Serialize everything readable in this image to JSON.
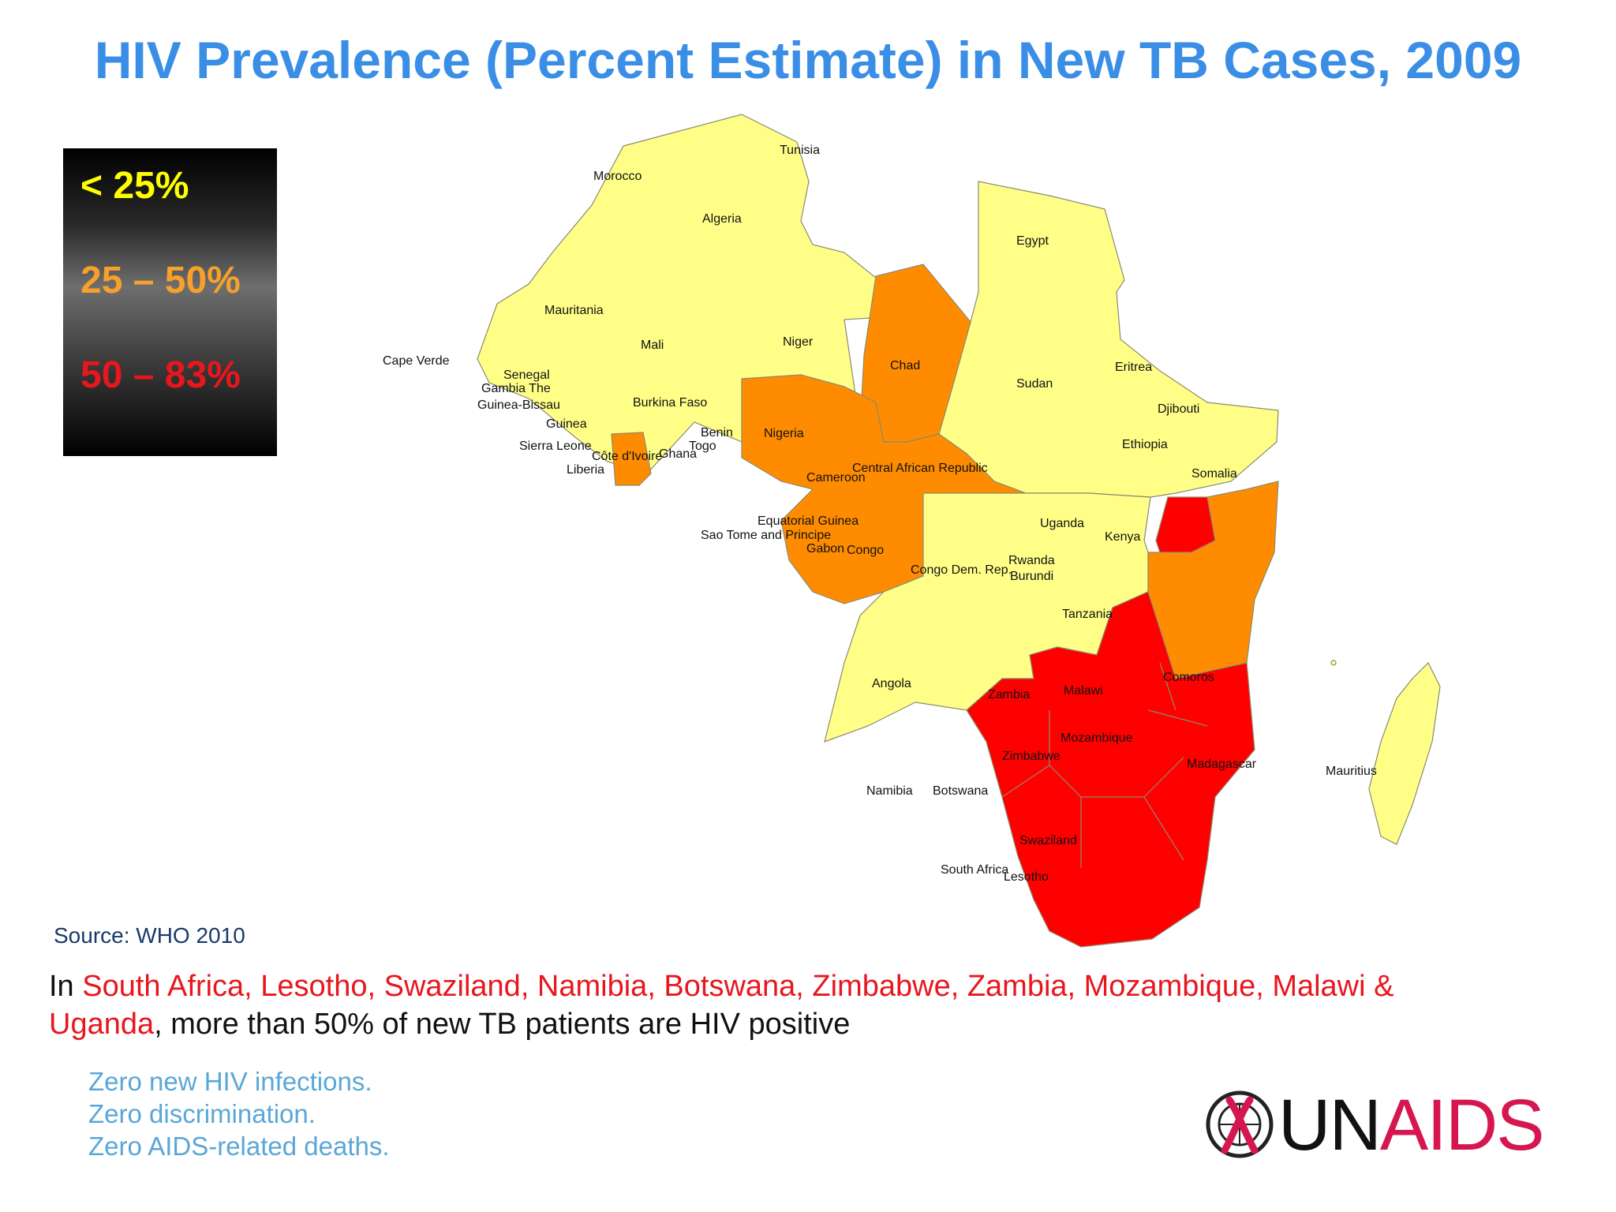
{
  "title": "HIV Prevalence (Percent Estimate) in New TB Cases, 2009",
  "legend": {
    "items": [
      {
        "label": "< 25%",
        "color": "#ffff00"
      },
      {
        "label": "25 – 50%",
        "color": "#f7a12a"
      },
      {
        "label": "50 – 83%",
        "color": "#e8161d"
      }
    ]
  },
  "map_colors": {
    "low": "#ffff88",
    "mid": "#ff8c00",
    "high": "#ff0000",
    "border": "#888888"
  },
  "countries": [
    {
      "name": "Morocco",
      "class": "< 25%"
    },
    {
      "name": "Tunisia",
      "class": "< 25%"
    },
    {
      "name": "Algeria",
      "class": "< 25%"
    },
    {
      "name": "Egypt",
      "class": "< 25%"
    },
    {
      "name": "Mauritania",
      "class": "< 25%"
    },
    {
      "name": "Mali",
      "class": "< 25%"
    },
    {
      "name": "Niger",
      "class": "< 25%"
    },
    {
      "name": "Cape Verde",
      "class": "< 25%"
    },
    {
      "name": "Chad",
      "class": "25 – 50%"
    },
    {
      "name": "Sudan",
      "class": "< 25%"
    },
    {
      "name": "Eritrea",
      "class": "< 25%"
    },
    {
      "name": "Senegal",
      "class": "< 25%"
    },
    {
      "name": "Gambia The",
      "class": "< 25%"
    },
    {
      "name": "Guinea-Bissau",
      "class": "< 25%"
    },
    {
      "name": "Burkina Faso",
      "class": "< 25%"
    },
    {
      "name": "Djibouti",
      "class": "< 25%"
    },
    {
      "name": "Guinea",
      "class": "< 25%"
    },
    {
      "name": "Benin",
      "class": "< 25%"
    },
    {
      "name": "Nigeria",
      "class": "25 – 50%"
    },
    {
      "name": "Ethiopia",
      "class": "< 25%"
    },
    {
      "name": "Sierra Leone",
      "class": "< 25%"
    },
    {
      "name": "Togo",
      "class": "< 25%"
    },
    {
      "name": "Côte d'Ivoire",
      "class": "25 – 50%"
    },
    {
      "name": "Ghana",
      "class": "< 25%"
    },
    {
      "name": "Liberia",
      "class": "< 25%"
    },
    {
      "name": "Central African Republic",
      "class": "25 – 50%"
    },
    {
      "name": "Cameroon",
      "class": "25 – 50%"
    },
    {
      "name": "Somalia",
      "class": "< 25%"
    },
    {
      "name": "Equatorial Guinea",
      "class": "25 – 50%"
    },
    {
      "name": "Sao Tome and Principe",
      "class": "< 25%"
    },
    {
      "name": "Uganda",
      "class": "50 – 83%"
    },
    {
      "name": "Kenya",
      "class": "25 – 50%"
    },
    {
      "name": "Gabon",
      "class": "25 – 50%"
    },
    {
      "name": "Congo",
      "class": "25 – 50%"
    },
    {
      "name": "Rwanda",
      "class": "25 – 50%"
    },
    {
      "name": "Burundi",
      "class": "25 – 50%"
    },
    {
      "name": "Congo Dem. Rep.",
      "class": "< 25%"
    },
    {
      "name": "Tanzania",
      "class": "25 – 50%"
    },
    {
      "name": "Comoros",
      "class": "< 25%"
    },
    {
      "name": "Angola",
      "class": "< 25%"
    },
    {
      "name": "Zambia",
      "class": "50 – 83%"
    },
    {
      "name": "Malawi",
      "class": "50 – 83%"
    },
    {
      "name": "Mozambique",
      "class": "50 – 83%"
    },
    {
      "name": "Madagascar",
      "class": "< 25%"
    },
    {
      "name": "Zimbabwe",
      "class": "50 – 83%"
    },
    {
      "name": "Mauritius",
      "class": "< 25%"
    },
    {
      "name": "Namibia",
      "class": "50 – 83%"
    },
    {
      "name": "Botswana",
      "class": "50 – 83%"
    },
    {
      "name": "Swaziland",
      "class": "50 – 83%"
    },
    {
      "name": "South Africa",
      "class": "50 – 83%"
    },
    {
      "name": "Lesotho",
      "class": "50 – 83%"
    }
  ],
  "source": "Source:  WHO 2010",
  "statement": {
    "prefix": "In ",
    "highlighted": "South Africa, Lesotho, Swaziland, Namibia, Botswana, Zimbabwe, Zambia, Mozambique, Malawi & Uganda",
    "suffix": ", more than 50% of new TB patients are HIV positive"
  },
  "tagline": [
    "Zero new HIV infections.",
    "Zero discrimination.",
    "Zero AIDS-related deaths."
  ],
  "logo": {
    "un": "UN",
    "aids": "AIDS"
  }
}
